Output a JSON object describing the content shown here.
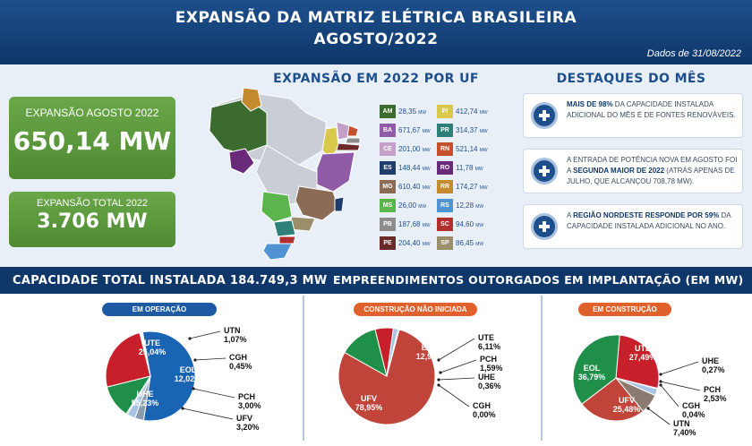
{
  "header": {
    "title_line1": "EXPANSÃO DA MATRIZ ELÉTRICA BRASILEIRA",
    "title_line2": "AGOSTO/2022",
    "date": "Dados de 31/08/2022"
  },
  "kpis": {
    "month_label": "EXPANSÃO AGOSTO 2022",
    "month_value": "650,14 MW",
    "total_label": "EXPANSÃO TOTAL 2022",
    "total_value": "3.706 MW"
  },
  "uf_section": {
    "title": "EXPANSÃO EM 2022 POR UF",
    "unit": "MW",
    "left": [
      {
        "code": "AM",
        "value": "28,35",
        "color": "#3b6b2e"
      },
      {
        "code": "BA",
        "value": "671,67",
        "color": "#8f5aa6"
      },
      {
        "code": "CE",
        "value": "201,00",
        "color": "#c4a0c8"
      },
      {
        "code": "ES",
        "value": "148,44",
        "color": "#1f3d6b"
      },
      {
        "code": "MG",
        "value": "610,40",
        "color": "#8c6b56"
      },
      {
        "code": "MS",
        "value": "26,00",
        "color": "#5bb54c"
      },
      {
        "code": "PB",
        "value": "187,68",
        "color": "#8d8d8d"
      },
      {
        "code": "PE",
        "value": "204,40",
        "color": "#6b2a2a"
      }
    ],
    "right": [
      {
        "code": "PI",
        "value": "412,74",
        "color": "#d9c84a"
      },
      {
        "code": "PR",
        "value": "314,37",
        "color": "#2f7f7a"
      },
      {
        "code": "RN",
        "value": "521,14",
        "color": "#c4502e"
      },
      {
        "code": "RO",
        "value": "11,78",
        "color": "#6a2a7a"
      },
      {
        "code": "RR",
        "value": "174,27",
        "color": "#c48a2e"
      },
      {
        "code": "RS",
        "value": "12,28",
        "color": "#4f93d2"
      },
      {
        "code": "SC",
        "value": "94,60",
        "color": "#b32e2e"
      },
      {
        "code": "SP",
        "value": "86,45",
        "color": "#9a8f6a"
      }
    ]
  },
  "highlights": {
    "title": "DESTAQUES DO MÊS",
    "items": [
      {
        "bold": "MAIS DE 98%",
        "text": " DA CAPACIDADE INSTALADA ADICIONAL DO MÊS É DE FONTES RENOVÁVEIS."
      },
      {
        "pre": "A ENTRADA DE POTÊNCIA NOVA EM AGOSTO FOI A ",
        "bold": "SEGUNDA MAIOR DE 2022",
        "text": " (ATRÁS APENAS DE JULHO, QUE ALCANÇOU 708,78 MW)."
      },
      {
        "pre": "A ",
        "bold": "REGIÃO NORDESTE RESPONDE POR 59%",
        "text": " DA CAPACIDADE INSTALADA ADICIONAL NO ANO."
      }
    ]
  },
  "band": {
    "left_label": "CAPACIDADE TOTAL INSTALADA ",
    "left_value": "184.749,3 MW",
    "right_label": "EMPREENDIMENTOS OUTORGADOS EM IMPLANTAÇÃO (EM MW)"
  },
  "colors": {
    "header": "#0f3769",
    "green": "#5d9a3c",
    "pill_blue": "#1d5aa3",
    "pill_orange": "#e0612c"
  },
  "chart_data": [
    {
      "type": "pie",
      "title": "EM OPERAÇÃO",
      "slices": [
        {
          "name": "UHE",
          "value": 55.23,
          "label": "55,23%",
          "color": "#1a64b4"
        },
        {
          "name": "UFV",
          "value": 3.2,
          "label": "3,20%",
          "color": "#8a9bb0"
        },
        {
          "name": "PCH",
          "value": 3.0,
          "label": "3,00%",
          "color": "#a7c4e4"
        },
        {
          "name": "CGH",
          "value": 0.45,
          "label": "0,45%",
          "color": "#4f8a33"
        },
        {
          "name": "EOL",
          "value": 12.02,
          "label": "12,02%",
          "color": "#1f8f4a"
        },
        {
          "name": "UTE",
          "value": 25.04,
          "label": "25,04%",
          "color": "#c8202a"
        },
        {
          "name": "UTN",
          "value": 1.07,
          "label": "1,07%",
          "color": "#ffffff"
        }
      ]
    },
    {
      "type": "pie",
      "title": "CONSTRUÇÃO NÃO INICIADA",
      "slices": [
        {
          "name": "UFV",
          "value": 78.95,
          "label": "78,95%",
          "color": "#c0443a"
        },
        {
          "name": "EOL",
          "value": 12.98,
          "label": "12,98%",
          "color": "#1f8f4a"
        },
        {
          "name": "UTE",
          "value": 6.11,
          "label": "6,11%",
          "color": "#c8202a"
        },
        {
          "name": "PCH",
          "value": 1.59,
          "label": "1,59%",
          "color": "#a7c4e4"
        },
        {
          "name": "UHE",
          "value": 0.36,
          "label": "0,36%",
          "color": "#1a64b4"
        },
        {
          "name": "CGH",
          "value": 0.0,
          "label": "0,00%",
          "color": "#4f8a33"
        }
      ]
    },
    {
      "type": "pie",
      "title": "EM CONSTRUÇÃO",
      "slices": [
        {
          "name": "UTE",
          "value": 27.49,
          "label": "27,49%",
          "color": "#c8202a"
        },
        {
          "name": "UHE",
          "value": 0.27,
          "label": "0,27%",
          "color": "#1a64b4"
        },
        {
          "name": "PCH",
          "value": 2.53,
          "label": "2,53%",
          "color": "#a7c4e4"
        },
        {
          "name": "CGH",
          "value": 0.04,
          "label": "0,04%",
          "color": "#4f8a33"
        },
        {
          "name": "UTN",
          "value": 7.4,
          "label": "7,40%",
          "color": "#8a7a70"
        },
        {
          "name": "UFV",
          "value": 25.48,
          "label": "25,48%",
          "color": "#c0443a"
        },
        {
          "name": "EOL",
          "value": 36.79,
          "label": "36,79%",
          "color": "#1f8f4a"
        }
      ]
    }
  ]
}
